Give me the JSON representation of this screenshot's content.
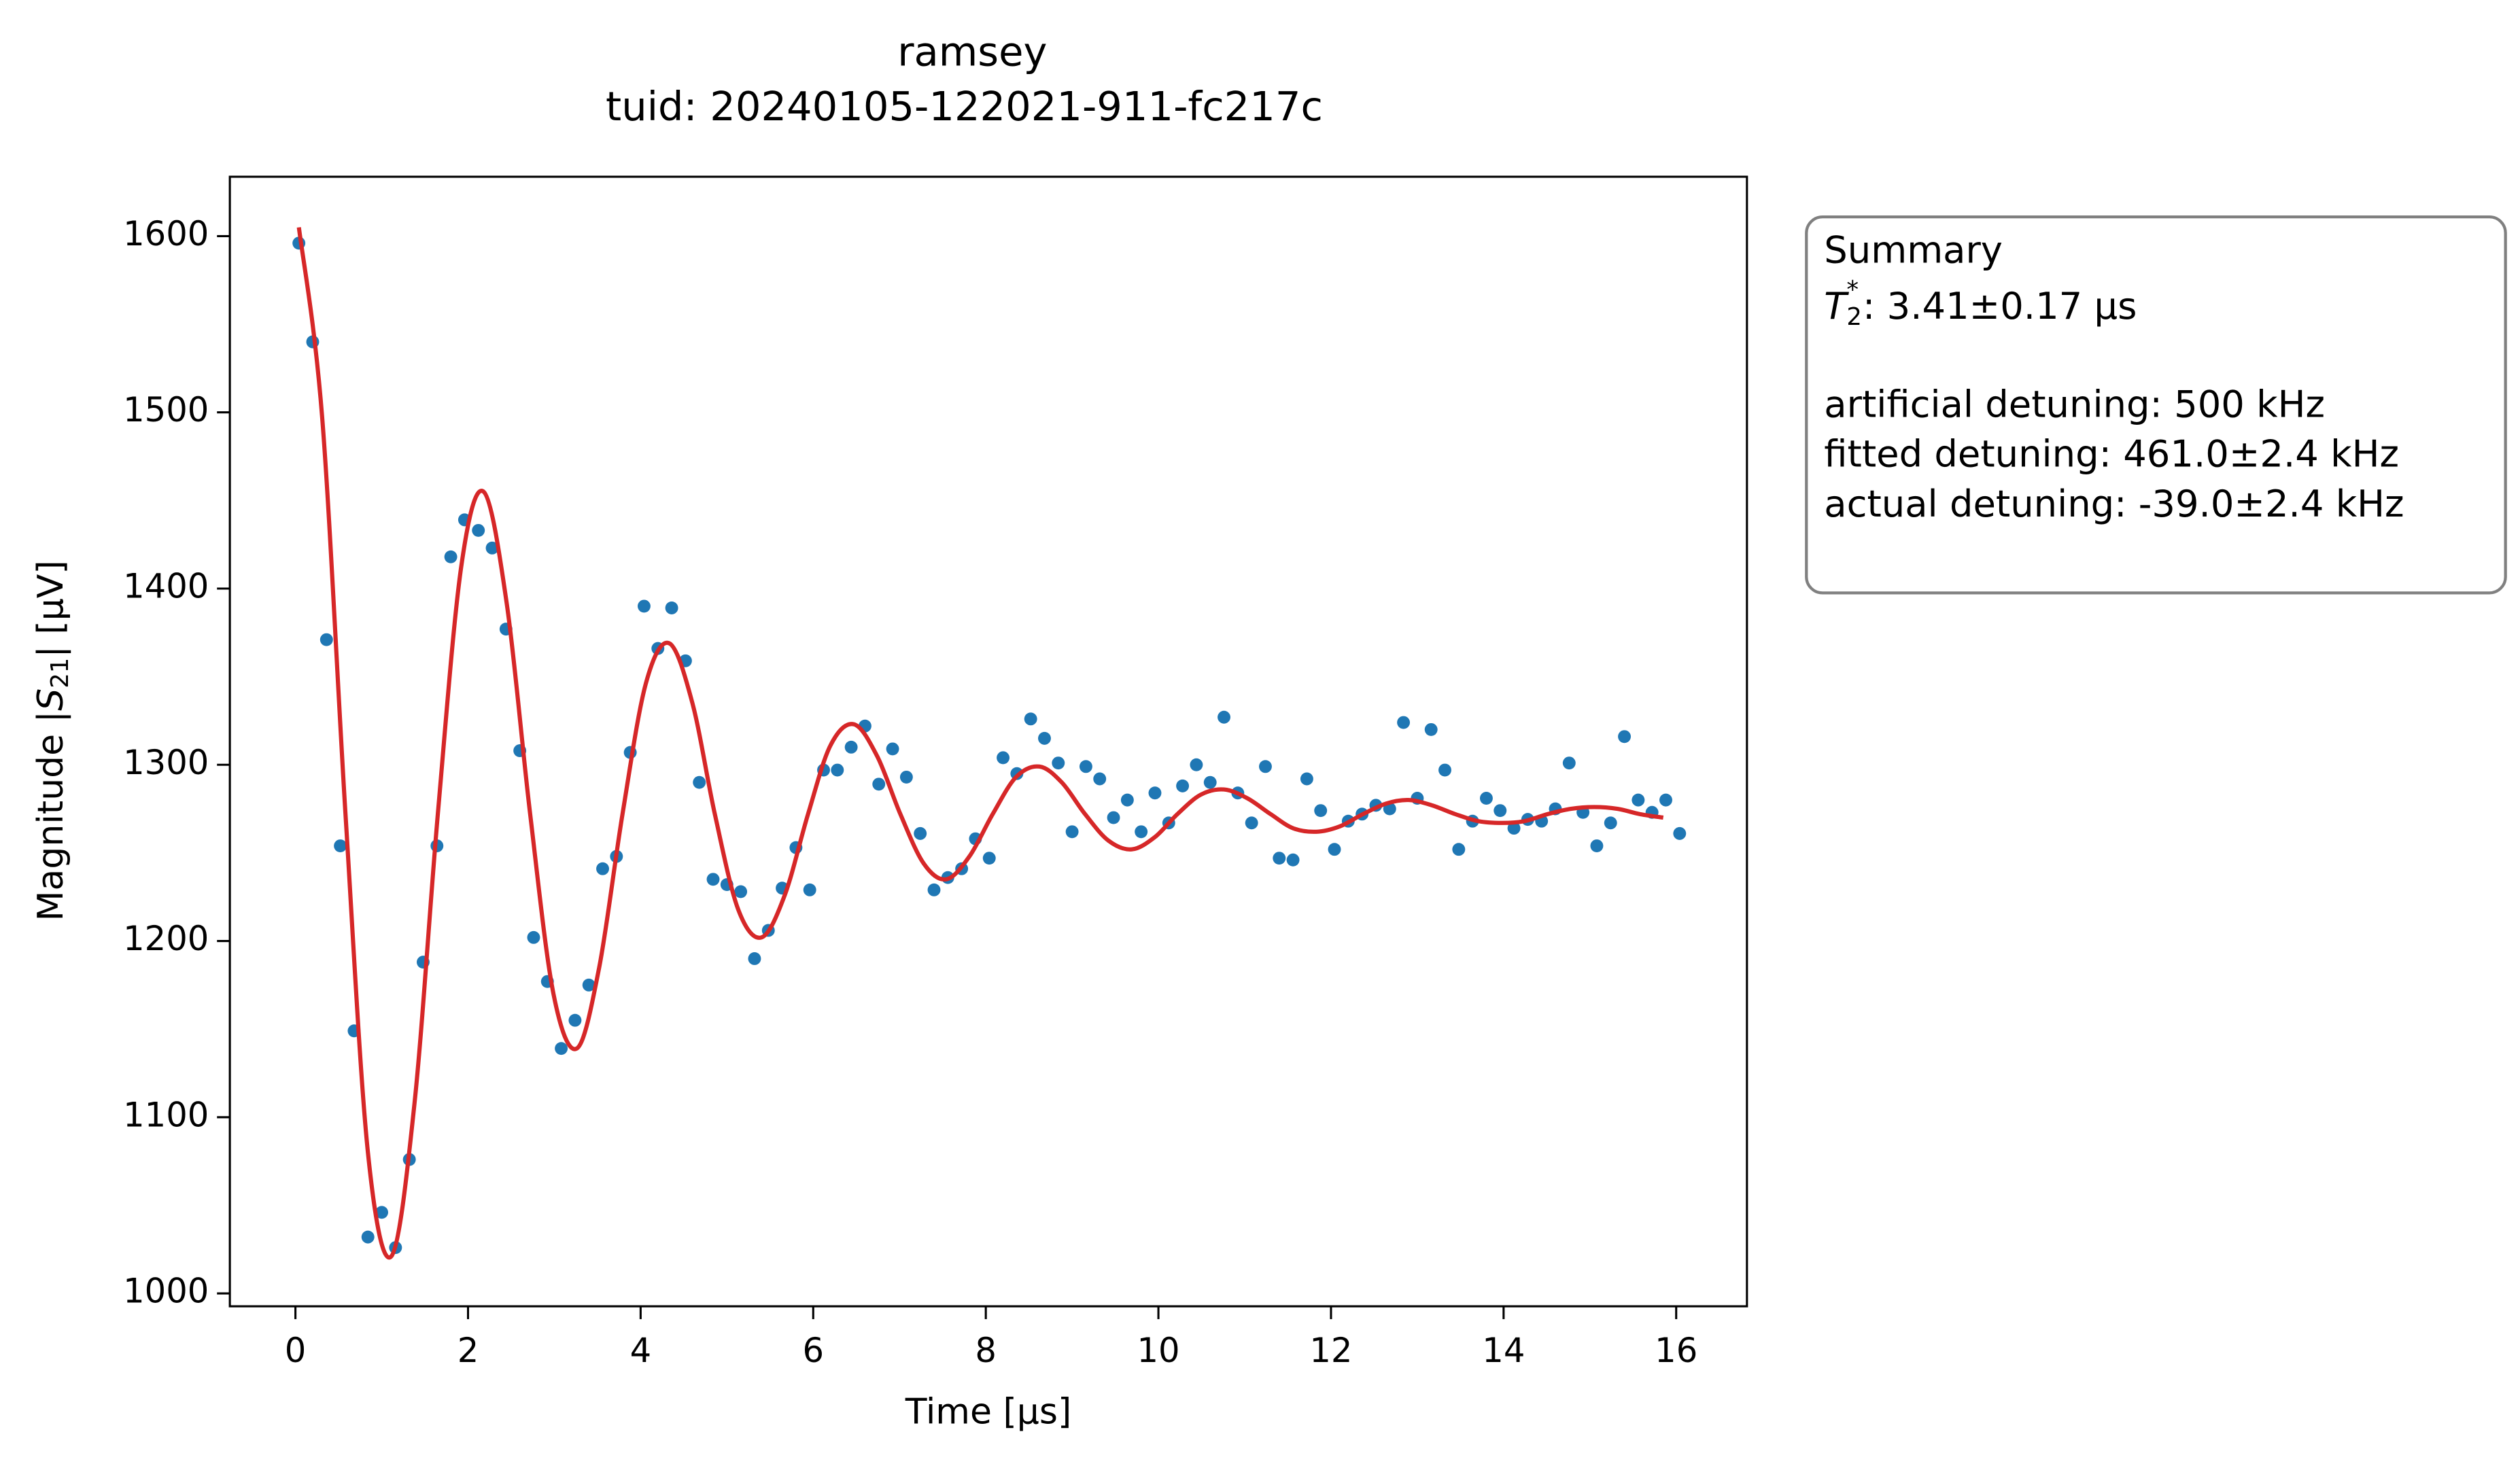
{
  "chart_data": {
    "type": "scatter",
    "title": "ramsey",
    "subtitle": "tuid: 20240105-122021-911-fc217c",
    "xlabel": "Time [µs]",
    "ylabel_parts": [
      "Magnitude |",
      "S",
      "21",
      "| [µV]"
    ],
    "xlim": [
      -0.76,
      16.82
    ],
    "ylim": [
      992.7,
      1633.7
    ],
    "xticks": [
      0,
      2,
      4,
      6,
      8,
      10,
      12,
      14,
      16
    ],
    "yticks": [
      1000,
      1100,
      1200,
      1300,
      1400,
      1500,
      1600
    ],
    "series": [
      {
        "type": "scatter",
        "color": "#1f77b4",
        "x": [
          0.04,
          0.2,
          0.36,
          0.52,
          0.68,
          0.84,
          1,
          1.16,
          1.32,
          1.48,
          1.64,
          1.8,
          1.96,
          2.12,
          2.28,
          2.44,
          2.6,
          2.76,
          2.92,
          3.08,
          3.24,
          3.4,
          3.56,
          3.72,
          3.88,
          4.04,
          4.2,
          4.36,
          4.52,
          4.68,
          4.84,
          5,
          5.16,
          5.32,
          5.48,
          5.64,
          5.8,
          5.96,
          6.12,
          6.28,
          6.44,
          6.6,
          6.76,
          6.92,
          7.08,
          7.24,
          7.4,
          7.56,
          7.72,
          7.88,
          8.04,
          8.2,
          8.36,
          8.52,
          8.68,
          8.84,
          9,
          9.16,
          9.32,
          9.48,
          9.64,
          9.8,
          9.96,
          10.12,
          10.28,
          10.44,
          10.6,
          10.76,
          10.92,
          11.08,
          11.24,
          11.4,
          11.56,
          11.72,
          11.88,
          12.04,
          12.2,
          12.36,
          12.52,
          12.68,
          12.84,
          13,
          13.16,
          13.32,
          13.48,
          13.64,
          13.8,
          13.96,
          14.12,
          14.28,
          14.44,
          14.6,
          14.76,
          14.92,
          15.08,
          15.24,
          15.4,
          15.56,
          15.72,
          15.88,
          16.04
        ],
        "values": [
          1596,
          1540,
          1371,
          1254,
          1149,
          1032,
          1046,
          1026,
          1076,
          1188,
          1254,
          1418,
          1439,
          1433,
          1423,
          1377,
          1308,
          1202,
          1177,
          1139,
          1155,
          1175,
          1241,
          1248,
          1307,
          1390,
          1366,
          1389,
          1359,
          1290,
          1235,
          1232,
          1228,
          1190,
          1206,
          1230,
          1253,
          1229,
          1297,
          1297,
          1310,
          1322,
          1289,
          1309,
          1293,
          1261,
          1229,
          1236,
          1241,
          1258,
          1247,
          1304,
          1295,
          1326,
          1315,
          1301,
          1262,
          1299,
          1292,
          1270,
          1280,
          1262,
          1284,
          1267,
          1288,
          1300,
          1290,
          1327,
          1284,
          1267,
          1299,
          1247,
          1246,
          1292,
          1274,
          1252,
          1268,
          1272,
          1277,
          1275,
          1324,
          1281,
          1320,
          1297,
          1252,
          1268,
          1281,
          1274,
          1264,
          1269,
          1268,
          1275,
          1301,
          1273,
          1254,
          1267,
          1316,
          1280,
          1273,
          1280,
          1261
        ]
      },
      {
        "type": "line",
        "color": "#d62728",
        "x": [
          0.04,
          0.31,
          0.58,
          0.84,
          1.11,
          1.38,
          1.65,
          1.92,
          2.18,
          2.45,
          2.72,
          2.99,
          3.26,
          3.52,
          3.79,
          4.06,
          4.33,
          4.6,
          4.86,
          5.13,
          5.4,
          5.67,
          5.94,
          6.2,
          6.47,
          6.74,
          7.01,
          7.28,
          7.54,
          7.81,
          8.08,
          8.35,
          8.62,
          8.88,
          9.15,
          9.42,
          9.69,
          9.96,
          10.22,
          10.49,
          10.76,
          11.03,
          11.3,
          11.56,
          11.83,
          12.1,
          12.37,
          12.64,
          12.9,
          13.17,
          13.44,
          13.71,
          13.98,
          14.24,
          14.51,
          14.78,
          15.05,
          15.32,
          15.58,
          15.85
        ],
        "values": [
          1605,
          1497,
          1272,
          1080,
          1021,
          1108,
          1272,
          1412,
          1455,
          1391,
          1272,
          1170,
          1139,
          1185,
          1272,
          1346,
          1369,
          1335,
          1272,
          1218,
          1202,
          1226,
          1272,
          1311,
          1323,
          1305,
          1272,
          1244,
          1235,
          1248,
          1272,
          1293,
          1299,
          1290,
          1272,
          1257,
          1252,
          1259,
          1272,
          1283,
          1286,
          1281,
          1272,
          1264,
          1262,
          1265,
          1272,
          1278,
          1280,
          1277,
          1272,
          1268,
          1267,
          1268,
          1272,
          1275,
          1276,
          1275,
          1272,
          1270
        ]
      }
    ],
    "text_box": {
      "title": "Summary",
      "t2_symbol": "T",
      "t2_sub": "2",
      "t2_sup": "*",
      "t2_value": ": 3.41±0.17 µs",
      "lines": [
        "artificial detuning: 500 kHz",
        "fitted detuning: 461.0±2.4 kHz",
        "actual detuning: -39.0±2.4 kHz"
      ]
    }
  }
}
